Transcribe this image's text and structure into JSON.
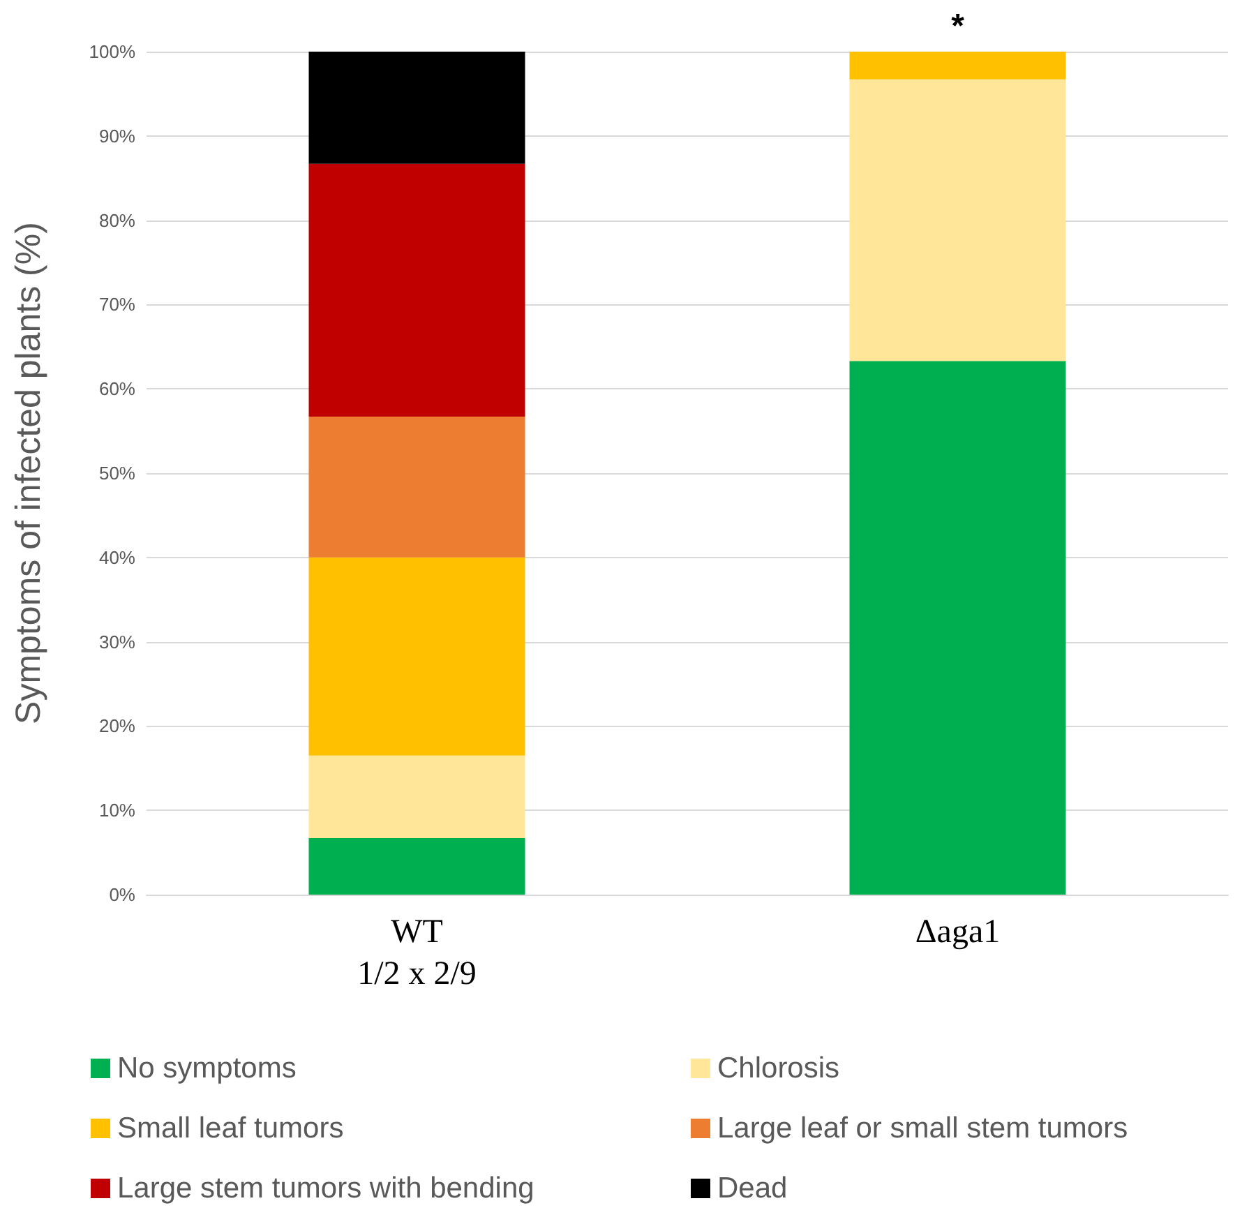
{
  "chart_data": {
    "type": "bar",
    "stacked": true,
    "ylabel": "Symptoms of infected plants (%)",
    "categories": [
      "WT\n1/2 x 2/9",
      "Δaga1"
    ],
    "series": [
      {
        "name": "No symptoms",
        "color": "#00b050",
        "values": [
          6.7,
          63.3
        ]
      },
      {
        "name": "Chlorosis",
        "color": "#ffe699",
        "values": [
          9.8,
          33.4
        ]
      },
      {
        "name": "Small leaf tumors",
        "color": "#ffc000",
        "values": [
          23.5,
          3.3
        ]
      },
      {
        "name": "Large leaf or small stem tumors",
        "color": "#ed7d31",
        "values": [
          16.7,
          0
        ]
      },
      {
        "name": "Large stem tumors with bending",
        "color": "#c00000",
        "values": [
          30,
          0
        ]
      },
      {
        "name": "Dead",
        "color": "#000000",
        "values": [
          13.3,
          0
        ]
      }
    ],
    "ylim": [
      0,
      100
    ],
    "yticks": [
      {
        "value": 0,
        "label": "0%"
      },
      {
        "value": 10,
        "label": "10%"
      },
      {
        "value": 20,
        "label": "20%"
      },
      {
        "value": 30,
        "label": "30%"
      },
      {
        "value": 40,
        "label": "40%"
      },
      {
        "value": 50,
        "label": "50%"
      },
      {
        "value": 60,
        "label": "60%"
      },
      {
        "value": 70,
        "label": "70%"
      },
      {
        "value": 80,
        "label": "80%"
      },
      {
        "value": 90,
        "label": "90%"
      },
      {
        "value": 100,
        "label": "100%"
      }
    ],
    "grid": "y",
    "legend": "bottom",
    "annotations": [
      {
        "text": "*",
        "x": "Δaga1",
        "y": 100
      }
    ]
  }
}
